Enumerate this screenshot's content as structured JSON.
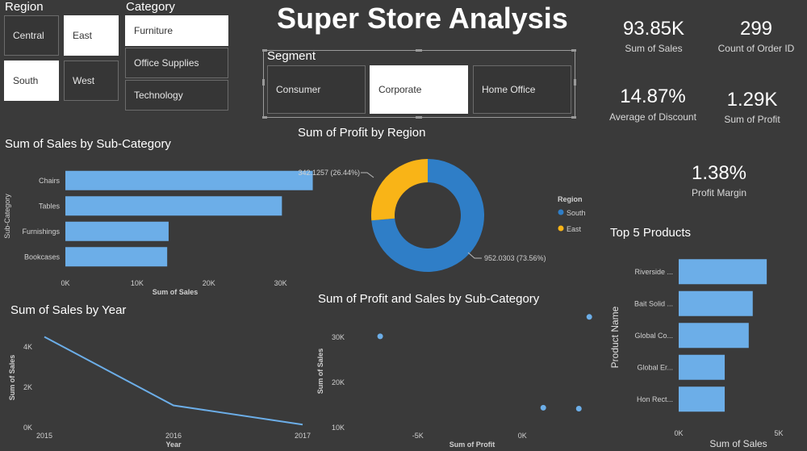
{
  "header": {
    "title": "Super Store Analysis"
  },
  "slicers": {
    "region": {
      "title": "Region",
      "items": [
        {
          "label": "Central",
          "selected": false
        },
        {
          "label": "East",
          "selected": true
        },
        {
          "label": "South",
          "selected": true
        },
        {
          "label": "West",
          "selected": false
        }
      ]
    },
    "category": {
      "title": "Category",
      "items": [
        {
          "label": "Furniture",
          "selected": true
        },
        {
          "label": "Office Supplies",
          "selected": false
        },
        {
          "label": "Technology",
          "selected": false
        }
      ]
    },
    "segment": {
      "title": "Segment",
      "items": [
        {
          "label": "Consumer",
          "selected": false
        },
        {
          "label": "Corporate",
          "selected": true
        },
        {
          "label": "Home Office",
          "selected": false
        }
      ]
    }
  },
  "kpis": [
    {
      "value": "93.85K",
      "label": "Sum of Sales"
    },
    {
      "value": "299",
      "label": "Count of Order ID"
    },
    {
      "value": "14.87%",
      "label": "Average of Discount"
    },
    {
      "value": "1.29K",
      "label": "Sum of Profit"
    },
    {
      "value": "1.38%",
      "label": "Profit Margin"
    }
  ],
  "colors": {
    "bar": "#6caee8",
    "south": "#2f7ec7",
    "east": "#f9b417",
    "line": "#6caee8",
    "background": "#3a3a3a"
  },
  "chart_data": [
    {
      "id": "sales-by-subcategory",
      "type": "bar",
      "orientation": "horizontal",
      "title": "Sum of Sales by Sub-Category",
      "xlabel": "Sum of Sales",
      "ylabel": "Sub-Category",
      "categories": [
        "Chairs",
        "Tables",
        "Furnishings",
        "Bookcases"
      ],
      "values": [
        34500,
        30200,
        14400,
        14200
      ],
      "xticks": [
        "0K",
        "10K",
        "20K",
        "30K"
      ],
      "xlim": [
        0,
        35000
      ]
    },
    {
      "id": "profit-by-region",
      "type": "pie",
      "title": "Sum of Profit by Region",
      "legend_title": "Region",
      "legend_position": "right",
      "categories": [
        "South",
        "East"
      ],
      "values": [
        952.0303,
        342.1257
      ],
      "data_labels": [
        "952.0303 (73.56%)",
        "342.1257 (26.44%)"
      ]
    },
    {
      "id": "top-5-products",
      "type": "bar",
      "orientation": "horizontal",
      "title": "Top 5 Products",
      "xlabel": "Sum of Sales",
      "ylabel": "Product Name",
      "categories": [
        "Riverside ...",
        "Bait Solid ...",
        "Global Co...",
        "Global Er...",
        "Hon Rect..."
      ],
      "values": [
        4400,
        3700,
        3500,
        2300,
        2300
      ],
      "xticks": [
        "0K",
        "5K"
      ],
      "xlim": [
        0,
        5000
      ]
    },
    {
      "id": "sales-by-year",
      "type": "line",
      "title": "Sum of Sales by Year",
      "xlabel": "Year",
      "ylabel": "Sum of Sales",
      "x": [
        "2015",
        "2016",
        "2017"
      ],
      "values": [
        4500,
        1100,
        150
      ],
      "yticks": [
        "0K",
        "2K",
        "4K"
      ],
      "ylim": [
        0,
        5000
      ]
    },
    {
      "id": "profit-and-sales-by-subcategory",
      "type": "scatter",
      "title": "Sum of Profit and Sales by Sub-Category",
      "xlabel": "Sum of Profit",
      "ylabel": "Sum of Sales",
      "xticks": [
        "-5K",
        "0K"
      ],
      "yticks": [
        "10K",
        "20K",
        "30K"
      ],
      "xlim": [
        -8000,
        3500
      ],
      "ylim": [
        10000,
        35000
      ],
      "points": [
        {
          "x": -6800,
          "y": 30200
        },
        {
          "x": 1000,
          "y": 14400
        },
        {
          "x": 2700,
          "y": 14200
        },
        {
          "x": 3200,
          "y": 34500
        }
      ]
    }
  ]
}
